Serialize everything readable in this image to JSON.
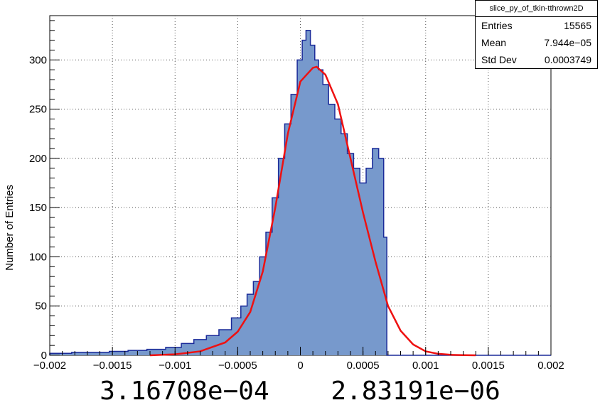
{
  "chart_data": {
    "type": "bar",
    "ylabel": "Number of Entries",
    "xlabel": "",
    "xlim": [
      -0.002,
      0.002
    ],
    "ylim": [
      0,
      345
    ],
    "x_ticks": [
      "-0.002",
      "-0.0015",
      "-0.001",
      "-0.0005",
      "0",
      "0.0005",
      "0.001",
      "0.0015",
      "0.002"
    ],
    "x_tick_values": [
      -0.002,
      -0.0015,
      -0.001,
      -0.0005,
      0,
      0.0005,
      0.001,
      0.0015,
      0.002
    ],
    "y_ticks": [
      "0",
      "50",
      "100",
      "150",
      "200",
      "250",
      "300"
    ],
    "y_tick_values": [
      0,
      50,
      100,
      150,
      200,
      250,
      300
    ],
    "grid": true,
    "histogram_color": "#7799cc",
    "histogram_line_color": "#1a2a99",
    "fit_color": "#ee1111",
    "histogram_x": [
      -0.0019,
      -0.00175,
      -0.0016,
      -0.00145,
      -0.0013,
      -0.00115,
      -0.001,
      -0.0009,
      -0.0008,
      -0.0007,
      -0.0006,
      -0.0005,
      -0.00045,
      -0.0004,
      -0.00035,
      -0.0003,
      -0.00025,
      -0.0002,
      -0.00015,
      -0.0001,
      -5e-05,
      0,
      3e-05,
      6e-05,
      0.0001,
      0.00013,
      0.00016,
      0.0002,
      0.00025,
      0.0003,
      0.00035,
      0.0004,
      0.00045,
      0.0005,
      0.00055,
      0.0006,
      0.00065,
      0.00068,
      0.0007
    ],
    "histogram_y": [
      2,
      3,
      3,
      4,
      5,
      6,
      8,
      12,
      16,
      20,
      26,
      38,
      50,
      62,
      75,
      100,
      125,
      160,
      200,
      235,
      265,
      300,
      320,
      330,
      315,
      300,
      290,
      275,
      255,
      240,
      225,
      205,
      190,
      175,
      190,
      210,
      200,
      120,
      0
    ],
    "fit_x": [
      -0.0012,
      -0.001,
      -0.0008,
      -0.0006,
      -0.0005,
      -0.0004,
      -0.0003,
      -0.0002,
      -0.0001,
      0,
      0.0001,
      0.00013,
      0.0002,
      0.0003,
      0.0004,
      0.0005,
      0.0006,
      0.0007,
      0.0008,
      0.0009,
      0.001,
      0.0011,
      0.0012,
      0.0013,
      0.0014
    ],
    "fit_y": [
      0,
      1,
      4,
      13,
      24,
      44,
      85,
      150,
      225,
      278,
      292,
      293,
      285,
      255,
      200,
      145,
      95,
      50,
      25,
      11,
      4,
      1.5,
      0.5,
      0.2,
      0
    ]
  },
  "stats_box": {
    "title": "slice_py_of_tkin-tthrown2D",
    "rows": [
      {
        "label": "Entries",
        "value": "15565"
      },
      {
        "label": "Mean",
        "value": "7.944e−05"
      },
      {
        "label": "Std Dev",
        "value": "0.0003749"
      }
    ]
  },
  "footer": {
    "left": "3.16708e−04",
    "right": "2.83191e−06"
  }
}
